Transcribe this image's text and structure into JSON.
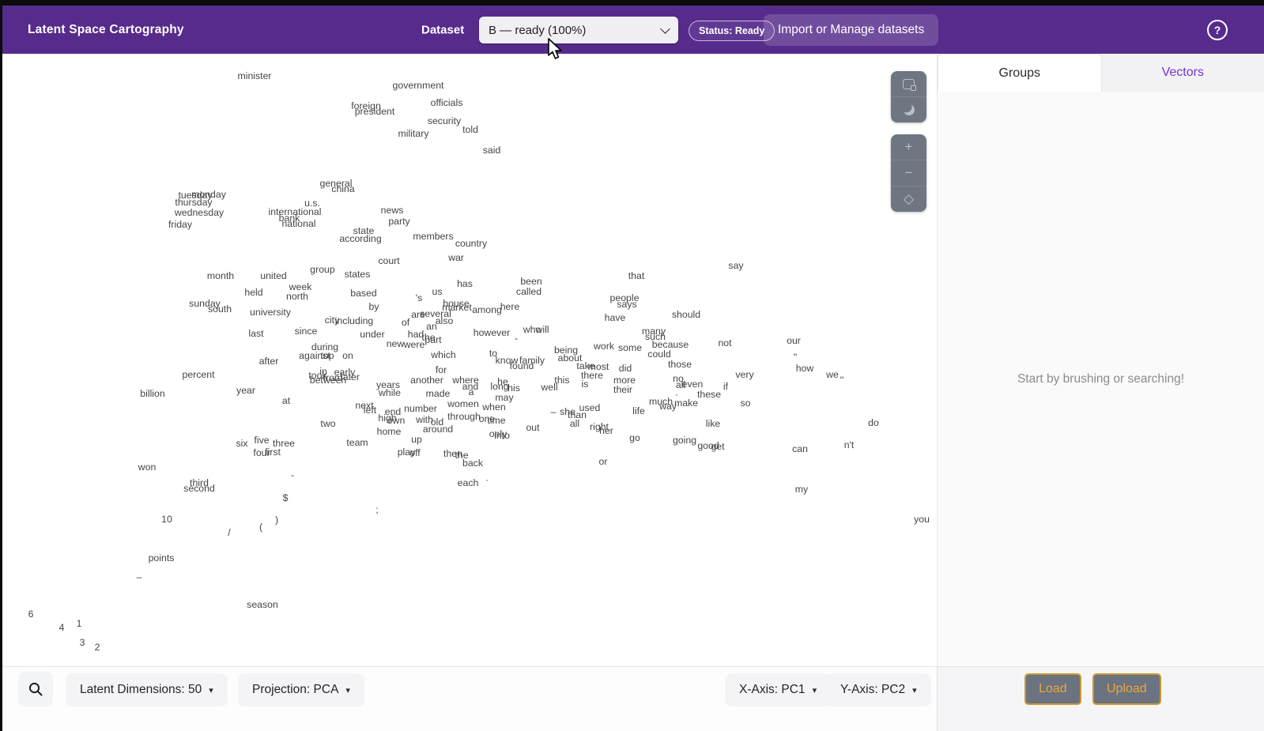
{
  "header": {
    "title": "Latent Space Cartography",
    "dataset_label": "Dataset",
    "dataset_value": "B — ready (100%)",
    "status_badge": "Status: Ready",
    "import_button": "Import or Manage datasets",
    "help_glyph": "?"
  },
  "sidebar": {
    "tab_groups": "Groups",
    "tab_vectors": "Vectors",
    "empty_message": "Start by brushing or searching!"
  },
  "plot_toolbar": {
    "zoom_in": "+",
    "zoom_out": "−",
    "reset": "◇"
  },
  "bottom_bar": {
    "latent_dimensions": "Latent Dimensions: 50",
    "projection": "Projection: PCA",
    "x_axis": "X-Axis: PC1",
    "y_axis": "Y-Axis: PC2",
    "load_button": "Load",
    "upload_button": "Upload",
    "caret": "▾"
  },
  "colors": {
    "header_purple": "#562b8c",
    "accent_purple": "#7036d4",
    "toolbar_gray": "#6e7781",
    "gold_text": "#e9a83e",
    "gold_border": "#c9992e",
    "word_gray": "#454545"
  },
  "chart_data": {
    "type": "scatter",
    "description": "Word-embedding map: 2D PCA projection of word vectors, labels placed at screen px coordinates",
    "projection": "PCA",
    "x_axis": "PC1",
    "y_axis": "PC2",
    "latent_dimensions": 50,
    "words": [
      [
        "minister",
        322,
        96
      ],
      [
        "government",
        529,
        108
      ],
      [
        "officials",
        565,
        130
      ],
      [
        "foreign",
        463,
        134
      ],
      [
        "president",
        474,
        141
      ],
      [
        "security",
        562,
        153
      ],
      [
        "told",
        595,
        164
      ],
      [
        "military",
        523,
        169
      ],
      [
        "said",
        622,
        190
      ],
      [
        "general",
        425,
        232
      ],
      [
        "china",
        434,
        239
      ],
      [
        "monday",
        264,
        246
      ],
      [
        "tuesday",
        247,
        247
      ],
      [
        "thursday",
        245,
        256
      ],
      [
        "wednesday",
        252,
        269
      ],
      [
        "friday",
        228,
        284
      ],
      [
        "u.s.",
        395,
        257
      ],
      [
        "international",
        373,
        268
      ],
      [
        "bank",
        366,
        276
      ],
      [
        "national",
        378,
        283
      ],
      [
        "news",
        496,
        266
      ],
      [
        "party",
        505,
        280
      ],
      [
        "state",
        460,
        292
      ],
      [
        "according",
        456,
        302
      ],
      [
        "members",
        548,
        299
      ],
      [
        "country",
        596,
        308
      ],
      [
        "war",
        577,
        326
      ],
      [
        "court",
        492,
        330
      ],
      [
        "say",
        931,
        336
      ],
      [
        "that",
        805,
        349
      ],
      [
        "month",
        279,
        349
      ],
      [
        "united",
        346,
        349
      ],
      [
        "group",
        408,
        341
      ],
      [
        "states",
        452,
        347
      ],
      [
        "week",
        380,
        363
      ],
      [
        "held",
        321,
        370
      ],
      [
        "north",
        376,
        375
      ],
      [
        "based",
        460,
        371
      ],
      [
        "us",
        553,
        369
      ],
      [
        "has",
        588,
        359
      ],
      [
        "been",
        672,
        356
      ],
      [
        "called",
        669,
        369
      ],
      [
        "'s",
        530,
        377
      ],
      [
        "people",
        790,
        377
      ],
      [
        "says",
        793,
        385
      ],
      [
        "house",
        577,
        384
      ],
      [
        "market",
        578,
        389
      ],
      [
        "among",
        616,
        392
      ],
      [
        "here",
        645,
        388
      ],
      [
        "have",
        778,
        402
      ],
      [
        "should",
        868,
        398
      ],
      [
        "sunday",
        259,
        384
      ],
      [
        "south",
        278,
        391
      ],
      [
        "university",
        342,
        395
      ],
      [
        "by",
        473,
        388
      ],
      [
        "are",
        529,
        398
      ],
      [
        "several",
        551,
        397
      ],
      [
        "also",
        562,
        406
      ],
      [
        "an",
        546,
        413
      ],
      [
        "of",
        513,
        408
      ],
      [
        "city",
        420,
        405
      ],
      [
        "including",
        448,
        406
      ],
      [
        "many",
        827,
        419
      ],
      [
        "such",
        829,
        426
      ],
      [
        "last",
        324,
        422
      ],
      [
        "since",
        387,
        419
      ],
      [
        "under",
        471,
        423
      ],
      [
        "had",
        526,
        423
      ],
      [
        "the",
        542,
        427
      ],
      [
        "part",
        548,
        430
      ],
      [
        "new",
        500,
        435
      ],
      [
        "were",
        524,
        436
      ],
      [
        "however",
        622,
        421
      ],
      [
        "-",
        653,
        428
      ],
      [
        "who",
        673,
        417
      ],
      [
        "will",
        686,
        417
      ],
      [
        "because",
        848,
        436
      ],
      [
        "could",
        834,
        448
      ],
      [
        "not",
        917,
        434
      ],
      [
        "our",
        1004,
        431
      ],
      [
        "\"",
        1006,
        452
      ],
      [
        "during",
        411,
        439
      ],
      [
        "against",
        398,
        450
      ],
      [
        "top",
        414,
        450
      ],
      [
        "on",
        440,
        450
      ],
      [
        "which",
        561,
        449
      ],
      [
        "to",
        624,
        447
      ],
      [
        "know",
        641,
        456
      ],
      [
        "family",
        673,
        456
      ],
      [
        "found",
        660,
        463
      ],
      [
        "being",
        716,
        443
      ],
      [
        "about",
        721,
        453
      ],
      [
        "work",
        764,
        438
      ],
      [
        "some",
        797,
        440
      ],
      [
        "those",
        860,
        461
      ],
      [
        "after",
        340,
        457
      ],
      [
        "in",
        409,
        470
      ],
      [
        "took",
        402,
        475
      ],
      [
        "early",
        436,
        471
      ],
      [
        "later",
        443,
        477
      ],
      [
        "from",
        421,
        478
      ],
      [
        "between",
        415,
        481
      ],
      [
        "percent",
        251,
        474
      ],
      [
        "did",
        791,
        466
      ],
      [
        "take",
        741,
        463
      ],
      [
        "most",
        757,
        464
      ],
      [
        "there",
        749,
        475
      ],
      [
        "very",
        942,
        474
      ],
      [
        "how",
        1018,
        466
      ],
      [
        "we",
        1053,
        474
      ],
      [
        "''",
        1065,
        481
      ],
      [
        "this",
        711,
        481
      ],
      [
        "is",
        740,
        486
      ],
      [
        "well",
        695,
        490
      ],
      [
        "more",
        790,
        481
      ],
      [
        "their",
        788,
        493
      ],
      [
        "·",
        856,
        499
      ],
      [
        "no",
        858,
        479
      ],
      [
        "all",
        861,
        487
      ],
      [
        "even",
        876,
        486
      ],
      [
        "if",
        918,
        489
      ],
      [
        "these",
        897,
        499
      ],
      [
        "years",
        491,
        487
      ],
      [
        "another",
        540,
        481
      ],
      [
        "for",
        558,
        468
      ],
      [
        "where",
        589,
        481
      ],
      [
        "and",
        595,
        489
      ],
      [
        "he",
        636,
        483
      ],
      [
        "long",
        632,
        489
      ],
      [
        "his",
        650,
        491
      ],
      [
        "billion",
        193,
        498
      ],
      [
        "year",
        311,
        494
      ],
      [
        "at",
        362,
        507
      ],
      [
        "while",
        493,
        497
      ],
      [
        "made",
        554,
        498
      ],
      [
        "a",
        596,
        496
      ],
      [
        "may",
        638,
        503
      ],
      [
        "much",
        836,
        508
      ],
      [
        "make",
        868,
        510
      ],
      [
        "way",
        845,
        514
      ],
      [
        "so",
        943,
        510
      ],
      [
        "life",
        808,
        520
      ],
      [
        "women",
        586,
        511
      ],
      [
        "when",
        625,
        515
      ],
      [
        "number",
        532,
        517
      ],
      [
        "next",
        461,
        513
      ],
      [
        "left",
        468,
        519
      ],
      [
        "end",
        497,
        521
      ],
      [
        "high",
        490,
        529
      ],
      [
        "own",
        501,
        532
      ],
      [
        "with",
        537,
        531
      ],
      [
        "old",
        553,
        534
      ],
      [
        "through",
        587,
        527
      ],
      [
        "one",
        616,
        530
      ],
      [
        "time",
        628,
        532
      ],
      [
        "she",
        718,
        521
      ],
      [
        "than",
        730,
        525
      ],
      [
        "used",
        746,
        516
      ],
      [
        "–",
        700,
        521
      ],
      [
        "two",
        415,
        536
      ],
      [
        "home",
        492,
        546
      ],
      [
        "around",
        554,
        543
      ],
      [
        "only",
        630,
        549
      ],
      [
        "into",
        635,
        551
      ],
      [
        "out",
        674,
        541
      ],
      [
        "all",
        727,
        536
      ],
      [
        "right",
        758,
        540
      ],
      [
        "her",
        767,
        545
      ],
      [
        "like",
        902,
        536
      ],
      [
        "do",
        1105,
        535
      ],
      [
        "team",
        452,
        560
      ],
      [
        "up",
        527,
        556
      ],
      [
        "six",
        306,
        561
      ],
      [
        "five",
        331,
        557
      ],
      [
        "three",
        359,
        561
      ],
      [
        "four",
        331,
        573
      ],
      [
        "first",
        345,
        572
      ],
      [
        "go",
        803,
        554
      ],
      [
        "going",
        866,
        557
      ],
      [
        "good",
        896,
        564
      ],
      [
        "get",
        908,
        565
      ],
      [
        "can",
        1012,
        568
      ],
      [
        "n't",
        1074,
        563
      ],
      [
        "play",
        514,
        572
      ],
      [
        "off",
        525,
        573
      ],
      [
        "then",
        573,
        574
      ],
      [
        "the",
        584,
        576
      ],
      [
        "back",
        598,
        586
      ],
      [
        "·",
        616,
        607
      ],
      [
        "each",
        592,
        611
      ],
      [
        "or",
        763,
        584
      ],
      [
        "my",
        1014,
        619
      ],
      [
        "won",
        186,
        591
      ],
      [
        "third",
        252,
        611
      ],
      [
        "second",
        252,
        618
      ],
      [
        "-",
        370,
        601
      ],
      [
        "$",
        361,
        630
      ],
      [
        ";",
        477,
        645
      ],
      [
        "10",
        211,
        657
      ],
      [
        ")",
        350,
        658
      ],
      [
        "(",
        330,
        667
      ],
      [
        "/",
        290,
        674
      ],
      [
        "you",
        1166,
        657
      ],
      [
        "points",
        204,
        706
      ],
      [
        "–",
        176,
        730
      ],
      [
        "season",
        332,
        765
      ],
      [
        "6",
        39,
        777
      ],
      [
        "4",
        78,
        794
      ],
      [
        "1",
        100,
        789
      ],
      [
        "3",
        104,
        813
      ],
      [
        "2",
        123,
        819
      ]
    ]
  }
}
